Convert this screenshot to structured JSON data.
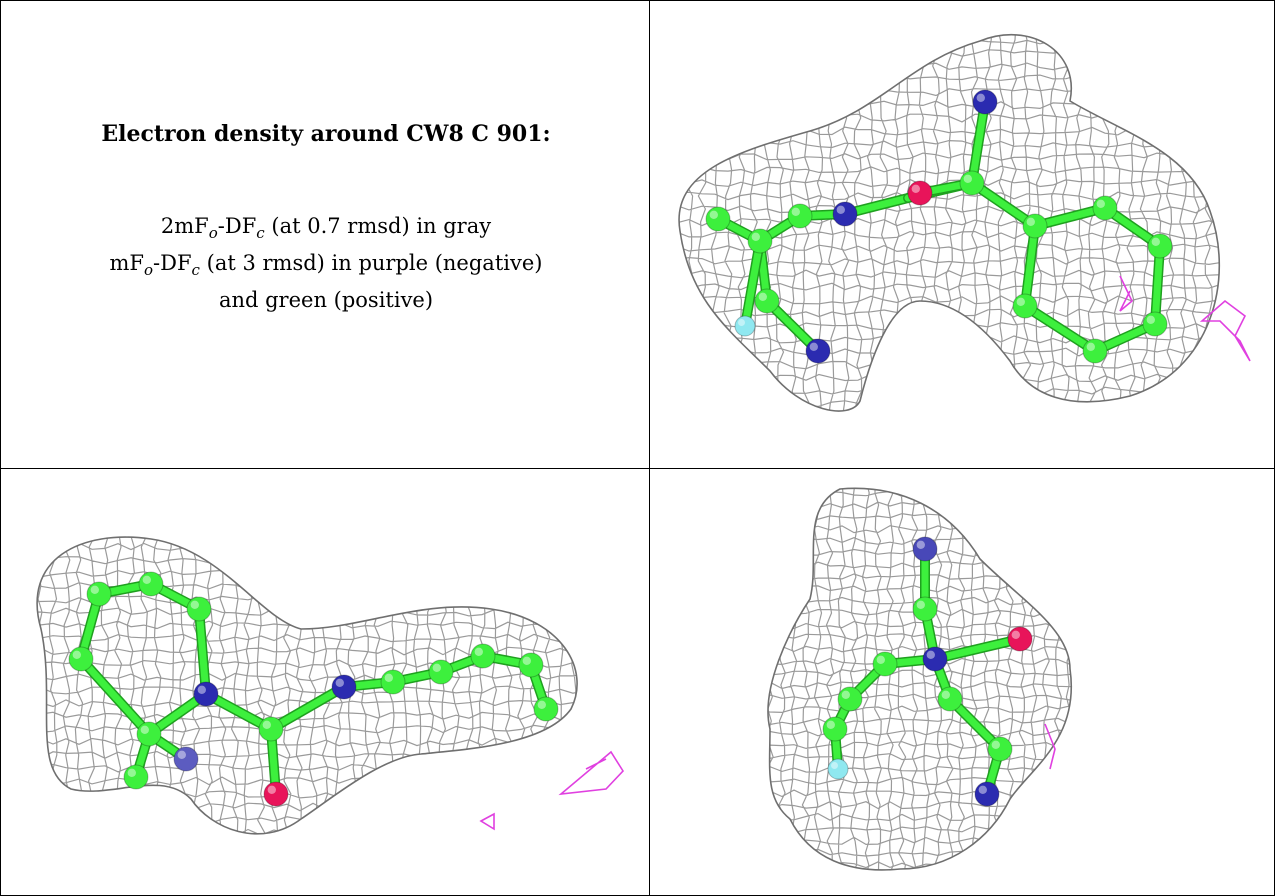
{
  "title": "Electron density around CW8 C 901:",
  "legend": {
    "line1": {
      "prefix": "2mF",
      "o": "o",
      "mid": "-DF",
      "c": "c",
      "suffix": " (at 0.7 rmsd) in gray"
    },
    "line2": {
      "prefix": "mF",
      "o": "o",
      "mid": "-DF",
      "c": "c",
      "suffix": " (at 3 rmsd) in purple (negative)"
    },
    "line3": "and green (positive)"
  },
  "colors": {
    "mesh": "#9a9a9a",
    "carbon": "#3df03d",
    "nitrogen": "#2b2bb0",
    "oxygen": "#e8145a",
    "fluorine": "#8fe8f0",
    "negative_density": "#e040e0"
  }
}
